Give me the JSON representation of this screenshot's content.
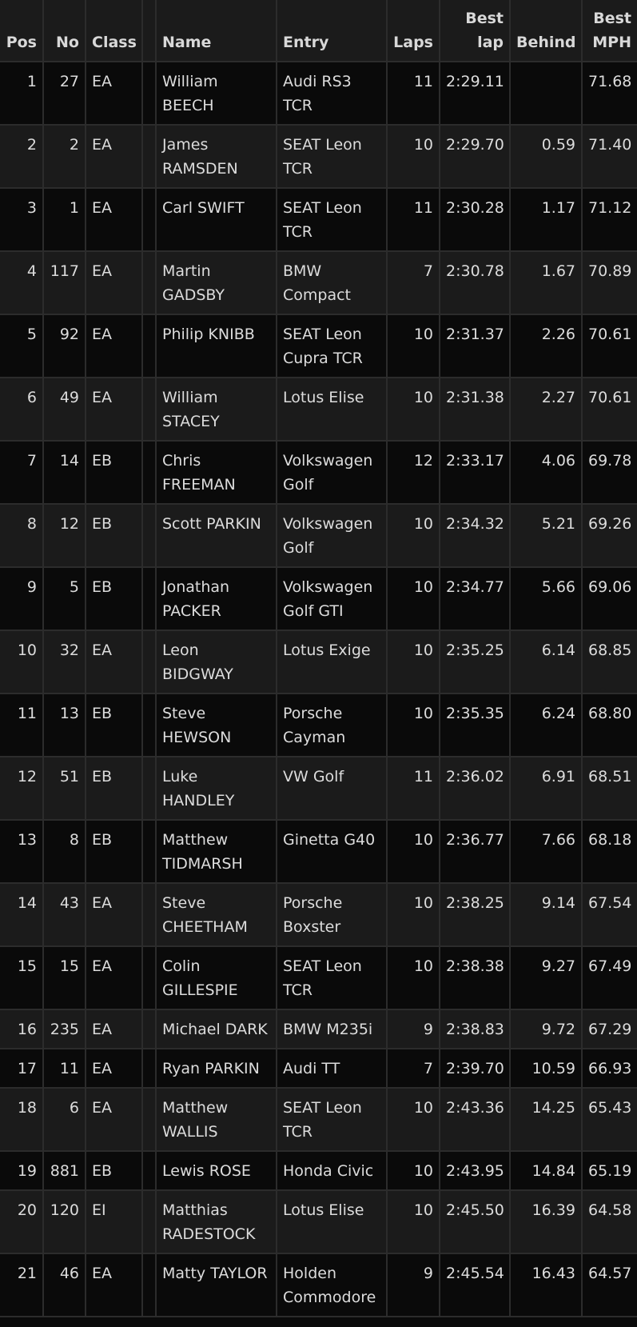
{
  "headers": {
    "pos": "Pos",
    "no": "No",
    "class": "Class",
    "blank": "",
    "name": "Name",
    "entry": "Entry",
    "laps": "Laps",
    "best_lap": "Best lap",
    "behind": "Behind",
    "best_mph": "Best MPH"
  },
  "rows": [
    {
      "pos": "1",
      "no": "27",
      "class": "EA",
      "name": "William BEECH",
      "entry": "Audi RS3 TCR",
      "laps": "11",
      "best_lap": "2:29.11",
      "behind": "",
      "mph": "71.68"
    },
    {
      "pos": "2",
      "no": "2",
      "class": "EA",
      "name": "James RAMSDEN",
      "entry": "SEAT Leon TCR",
      "laps": "10",
      "best_lap": "2:29.70",
      "behind": "0.59",
      "mph": "71.40"
    },
    {
      "pos": "3",
      "no": "1",
      "class": "EA",
      "name": "Carl SWIFT",
      "entry": "SEAT Leon TCR",
      "laps": "11",
      "best_lap": "2:30.28",
      "behind": "1.17",
      "mph": "71.12"
    },
    {
      "pos": "4",
      "no": "117",
      "class": "EA",
      "name": "Martin GADSBY",
      "entry": "BMW Compact",
      "laps": "7",
      "best_lap": "2:30.78",
      "behind": "1.67",
      "mph": "70.89"
    },
    {
      "pos": "5",
      "no": "92",
      "class": "EA",
      "name": "Philip KNIBB",
      "entry": "SEAT Leon Cupra TCR",
      "laps": "10",
      "best_lap": "2:31.37",
      "behind": "2.26",
      "mph": "70.61"
    },
    {
      "pos": "6",
      "no": "49",
      "class": "EA",
      "name": "William STACEY",
      "entry": "Lotus Elise",
      "laps": "10",
      "best_lap": "2:31.38",
      "behind": "2.27",
      "mph": "70.61"
    },
    {
      "pos": "7",
      "no": "14",
      "class": "EB",
      "name": "Chris FREEMAN",
      "entry": "Volkswagen Golf",
      "laps": "12",
      "best_lap": "2:33.17",
      "behind": "4.06",
      "mph": "69.78"
    },
    {
      "pos": "8",
      "no": "12",
      "class": "EB",
      "name": "Scott PARKIN",
      "entry": "Volkswagen Golf",
      "laps": "10",
      "best_lap": "2:34.32",
      "behind": "5.21",
      "mph": "69.26"
    },
    {
      "pos": "9",
      "no": "5",
      "class": "EB",
      "name": "Jonathan PACKER",
      "entry": "Volkswagen Golf GTI",
      "laps": "10",
      "best_lap": "2:34.77",
      "behind": "5.66",
      "mph": "69.06"
    },
    {
      "pos": "10",
      "no": "32",
      "class": "EA",
      "name": "Leon BIDGWAY",
      "entry": "Lotus Exige",
      "laps": "10",
      "best_lap": "2:35.25",
      "behind": "6.14",
      "mph": "68.85"
    },
    {
      "pos": "11",
      "no": "13",
      "class": "EB",
      "name": "Steve HEWSON",
      "entry": "Porsche Cayman",
      "laps": "10",
      "best_lap": "2:35.35",
      "behind": "6.24",
      "mph": "68.80"
    },
    {
      "pos": "12",
      "no": "51",
      "class": "EB",
      "name": "Luke HANDLEY",
      "entry": "VW Golf",
      "laps": "11",
      "best_lap": "2:36.02",
      "behind": "6.91",
      "mph": "68.51"
    },
    {
      "pos": "13",
      "no": "8",
      "class": "EB",
      "name": "Matthew TIDMARSH",
      "entry": "Ginetta G40",
      "laps": "10",
      "best_lap": "2:36.77",
      "behind": "7.66",
      "mph": "68.18"
    },
    {
      "pos": "14",
      "no": "43",
      "class": "EA",
      "name": "Steve CHEETHAM",
      "entry": "Porsche Boxster",
      "laps": "10",
      "best_lap": "2:38.25",
      "behind": "9.14",
      "mph": "67.54"
    },
    {
      "pos": "15",
      "no": "15",
      "class": "EA",
      "name": "Colin GILLESPIE",
      "entry": "SEAT Leon TCR",
      "laps": "10",
      "best_lap": "2:38.38",
      "behind": "9.27",
      "mph": "67.49"
    },
    {
      "pos": "16",
      "no": "235",
      "class": "EA",
      "name": "Michael DARK",
      "entry": "BMW M235i",
      "laps": "9",
      "best_lap": "2:38.83",
      "behind": "9.72",
      "mph": "67.29"
    },
    {
      "pos": "17",
      "no": "11",
      "class": "EA",
      "name": "Ryan PARKIN",
      "entry": "Audi TT",
      "laps": "7",
      "best_lap": "2:39.70",
      "behind": "10.59",
      "mph": "66.93"
    },
    {
      "pos": "18",
      "no": "6",
      "class": "EA",
      "name": "Matthew WALLIS",
      "entry": "SEAT Leon TCR",
      "laps": "10",
      "best_lap": "2:43.36",
      "behind": "14.25",
      "mph": "65.43"
    },
    {
      "pos": "19",
      "no": "881",
      "class": "EB",
      "name": "Lewis ROSE",
      "entry": "Honda Civic",
      "laps": "10",
      "best_lap": "2:43.95",
      "behind": "14.84",
      "mph": "65.19"
    },
    {
      "pos": "20",
      "no": "120",
      "class": "EI",
      "name": "Matthias RADESTOCK",
      "entry": "Lotus Elise",
      "laps": "10",
      "best_lap": "2:45.50",
      "behind": "16.39",
      "mph": "64.58"
    },
    {
      "pos": "21",
      "no": "46",
      "class": "EA",
      "name": "Matty TAYLOR",
      "entry": "Holden Commodore",
      "laps": "9",
      "best_lap": "2:45.54",
      "behind": "16.43",
      "mph": "64.57"
    }
  ]
}
